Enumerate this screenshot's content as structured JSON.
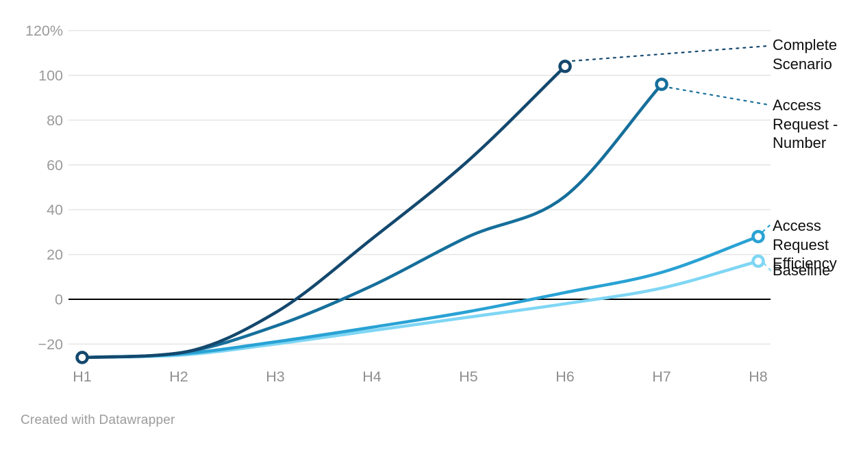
{
  "footer": {
    "attribution": "Created with Datawrapper"
  },
  "colors": {
    "grid": "#e4e4e4",
    "zero_line": "#000000",
    "y_tick_text": "#9a9a9a",
    "x_tick_text": "#8f8f8f",
    "label_text": "#0e0e0e",
    "background": "#ffffff"
  },
  "chart_data": {
    "type": "line",
    "title": "",
    "xlabel": "",
    "ylabel": "",
    "x": [
      "H1",
      "H2",
      "H3",
      "H4",
      "H5",
      "H6",
      "H7",
      "H8"
    ],
    "y_ticks": [
      {
        "label": "120%",
        "v": 120
      },
      {
        "label": "100",
        "v": 100
      },
      {
        "label": "80",
        "v": 80
      },
      {
        "label": "60",
        "v": 60
      },
      {
        "label": "40",
        "v": 40
      },
      {
        "label": "20",
        "v": 20
      },
      {
        "label": "0",
        "v": 0
      },
      {
        "label": "−20",
        "v": -20
      }
    ],
    "ylim": [
      -30,
      125
    ],
    "grid": "horizontal",
    "legend_position": "right-direct-labels",
    "interpolation": "monotone-curved",
    "series": [
      {
        "name": "Baseline",
        "color": "#7fd6f4",
        "values": [
          -26,
          -25,
          -20,
          -14,
          -8,
          -2,
          5,
          17
        ],
        "end_marker": "H8"
      },
      {
        "name": "Access Request Efficiency",
        "color": "#29a2d4",
        "values": [
          -26,
          -24.5,
          -19,
          -12.5,
          -5.5,
          3,
          12,
          28
        ],
        "end_marker": "H8"
      },
      {
        "name": "Access Request - Number",
        "color": "#166f9b",
        "values": [
          -26,
          -24,
          -12,
          6,
          28,
          46,
          96,
          null
        ],
        "end_marker": "H7"
      },
      {
        "name": "Complete Scenario",
        "color": "#14486e",
        "values": [
          -26,
          -24,
          -6,
          27,
          62,
          104,
          null,
          null
        ],
        "end_marker": "H6",
        "start_marker": "H1"
      }
    ]
  }
}
